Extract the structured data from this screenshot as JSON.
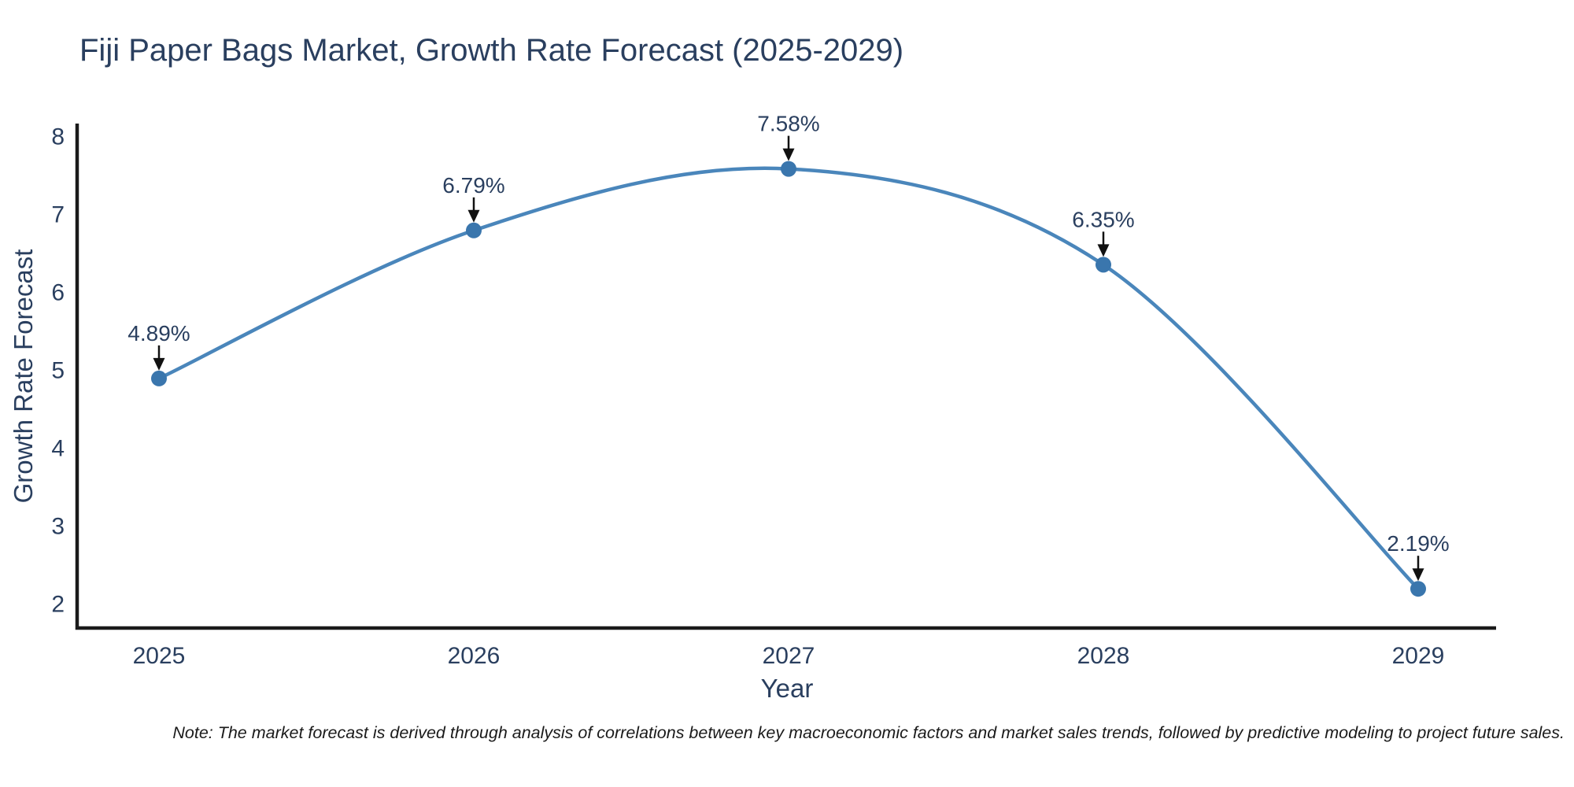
{
  "title": "Fiji Paper Bags Market, Growth Rate Forecast (2025-2029)",
  "note": "Note: The market forecast is derived through analysis of correlations between key macroeconomic factors and market sales trends, followed by predictive modeling to project future sales.",
  "chart_data": {
    "type": "line",
    "title": "Fiji Paper Bags Market, Growth Rate Forecast (2025-2029)",
    "xlabel": "Year",
    "ylabel": "Growth Rate Forecast",
    "categories": [
      "2025",
      "2026",
      "2027",
      "2028",
      "2029"
    ],
    "values": [
      4.89,
      6.79,
      7.58,
      6.35,
      2.19
    ],
    "point_labels": [
      "4.89%",
      "6.79%",
      "7.58%",
      "6.35%",
      "2.19%"
    ],
    "yticks": [
      2,
      3,
      4,
      5,
      6,
      7,
      8
    ],
    "ylim": [
      2,
      8
    ],
    "line_shape": "spline",
    "grid": false,
    "legend": false,
    "annotations_have_arrows": true,
    "colors": {
      "line": "#4a86bb",
      "marker": "#3a76ad",
      "axis": "#1a1a1a",
      "tick_text": "#2a3f5f",
      "annotation_text": "#2a3f5f",
      "arrow": "#111111"
    }
  }
}
